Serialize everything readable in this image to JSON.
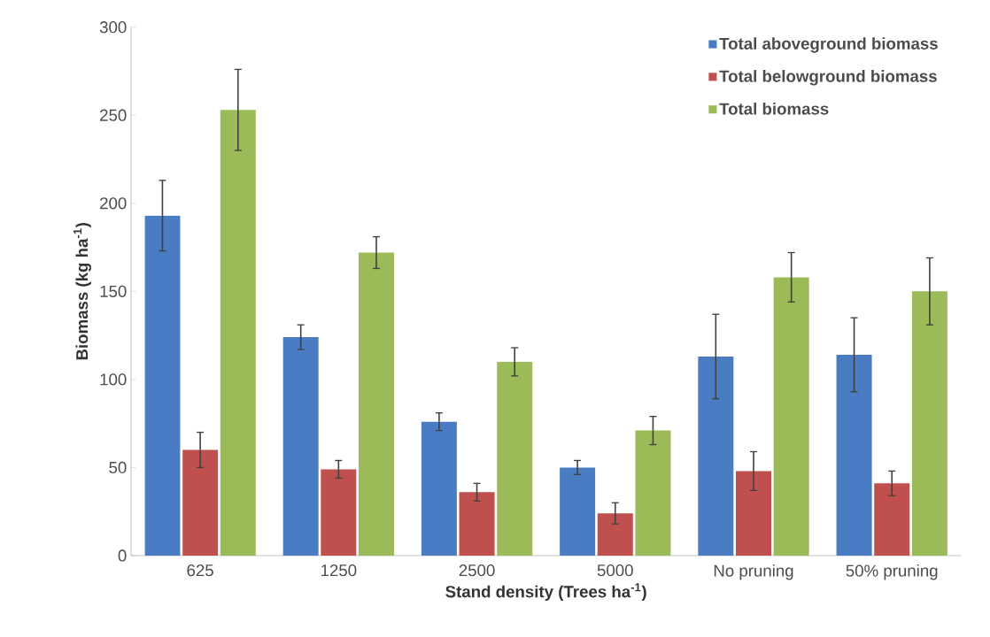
{
  "chart_data": {
    "type": "bar",
    "xlabel": "Stand density (Trees ha$^{-1}$)",
    "ylabel": "Biomass (kg ha$^{-1}$)",
    "categories": [
      "625",
      "1250",
      "2500",
      "5000",
      "No pruning",
      "50% pruning"
    ],
    "series": [
      {
        "name": "Total aboveground biomass",
        "color": "#4a7cc4",
        "values": [
          193,
          124,
          76,
          50,
          113,
          114
        ],
        "errors": [
          20,
          7,
          5,
          4,
          24,
          21
        ]
      },
      {
        "name": "Total belowground biomass",
        "color": "#c0504d",
        "values": [
          60,
          49,
          36,
          24,
          48,
          41
        ],
        "errors": [
          10,
          5,
          5,
          6,
          11,
          7
        ]
      },
      {
        "name": "Total biomass",
        "color": "#9bbb59",
        "values": [
          253,
          172,
          110,
          71,
          158,
          150
        ],
        "errors": [
          23,
          9,
          8,
          8,
          14,
          19
        ]
      }
    ],
    "ylim": [
      0,
      300
    ],
    "yticks": [
      0,
      50,
      100,
      150,
      200,
      250,
      300
    ],
    "grid": false,
    "legend": "top right"
  }
}
